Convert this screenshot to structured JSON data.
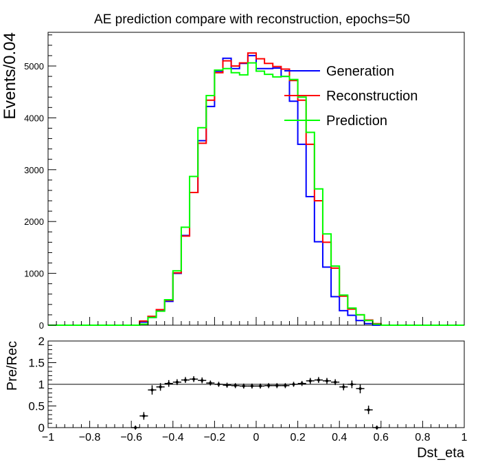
{
  "chart_data": [
    {
      "type": "line",
      "title": "AE prediction compare with reconstruction, epochs=50",
      "ylabel": "Events/0.04",
      "xlim": [
        -1,
        1
      ],
      "ylim": [
        0,
        5650
      ],
      "bin_width": 0.04,
      "y_ticks": [
        0,
        1000,
        2000,
        3000,
        4000,
        5000
      ],
      "y_tick_labels": [
        "0",
        "1000",
        "2000",
        "3000",
        "4000",
        "5000"
      ],
      "legend_position": "top-right",
      "series": [
        {
          "name": "Generation",
          "color": "#0000ff",
          "bins_from": -0.6,
          "values": [
            0,
            60,
            150,
            280,
            460,
            1000,
            1730,
            2560,
            3560,
            4220,
            4900,
            5150,
            4950,
            5050,
            5200,
            4950,
            4950,
            4960,
            4800,
            4320,
            3490,
            2480,
            1610,
            1120,
            550,
            280,
            190,
            90,
            30,
            0
          ]
        },
        {
          "name": "Reconstruction",
          "color": "#ff0000",
          "bins_from": -0.6,
          "values": [
            0,
            80,
            170,
            300,
            480,
            1010,
            1720,
            2560,
            3510,
            4340,
            4870,
            5100,
            5000,
            5060,
            5250,
            5140,
            5050,
            4990,
            4940,
            4720,
            4340,
            3490,
            2400,
            1600,
            1100,
            560,
            310,
            200,
            100,
            30
          ]
        },
        {
          "name": "Prediction",
          "color": "#00ff00",
          "bins_from": -0.6,
          "values": [
            0,
            20,
            150,
            270,
            490,
            1050,
            1890,
            2870,
            3810,
            4430,
            4920,
            4950,
            4870,
            4830,
            5060,
            4900,
            4840,
            4790,
            4800,
            4740,
            4400,
            3720,
            2630,
            1760,
            1140,
            580,
            330,
            200,
            90,
            20
          ]
        }
      ]
    },
    {
      "type": "scatter",
      "xlabel": "Dst_eta",
      "ylabel": "Pre/Rec",
      "xlim": [
        -1,
        1
      ],
      "ylim": [
        0,
        2
      ],
      "reference_line": 1,
      "x_ticks": [
        -1,
        -0.8,
        -0.6,
        -0.4,
        -0.2,
        0,
        0.2,
        0.4,
        0.6,
        0.8,
        1
      ],
      "x_tick_labels": [
        "−1",
        "−0.8",
        "−0.6",
        "−0.4",
        "−0.2",
        "0",
        "0.2",
        "0.4",
        "0.6",
        "0.8",
        "1"
      ],
      "y_ticks": [
        0,
        0.5,
        1,
        1.5,
        2
      ],
      "y_tick_labels": [
        "0",
        "0.5",
        "1",
        "1.5",
        "2"
      ],
      "x": [
        -0.58,
        -0.54,
        -0.5,
        -0.46,
        -0.42,
        -0.38,
        -0.34,
        -0.3,
        -0.26,
        -0.22,
        -0.18,
        -0.14,
        -0.1,
        -0.06,
        -0.02,
        0.02,
        0.06,
        0.1,
        0.14,
        0.18,
        0.22,
        0.26,
        0.3,
        0.34,
        0.38,
        0.42,
        0.46,
        0.5,
        0.54,
        0.58
      ],
      "y": [
        0,
        0.27,
        0.87,
        0.94,
        1.02,
        1.05,
        1.1,
        1.12,
        1.09,
        1.03,
        1.0,
        0.98,
        0.97,
        0.96,
        0.96,
        0.96,
        0.97,
        0.97,
        0.97,
        1.0,
        1.02,
        1.08,
        1.1,
        1.08,
        1.05,
        0.94,
        1.0,
        0.9,
        0.41,
        0
      ],
      "y_err": [
        0,
        0.04,
        0.06,
        0.04,
        0.03,
        0.02,
        0.02,
        0.02,
        0.02,
        0.01,
        0.01,
        0.01,
        0.01,
        0.01,
        0.01,
        0.01,
        0.01,
        0.01,
        0.01,
        0.01,
        0.01,
        0.02,
        0.02,
        0.02,
        0.02,
        0.03,
        0.04,
        0.06,
        0.05,
        0
      ]
    }
  ]
}
